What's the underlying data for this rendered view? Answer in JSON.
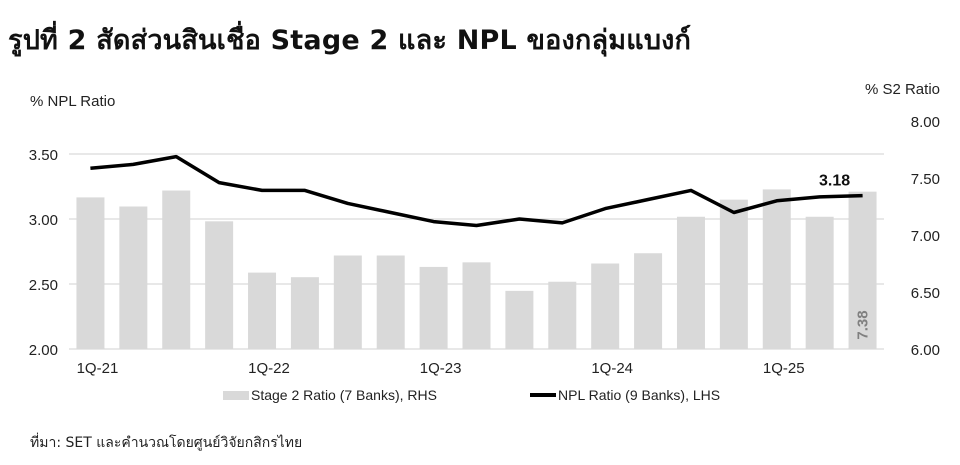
{
  "title": "รูปที่ 2 สัดส่วนสินเชื่อ Stage  2 และ NPL ของกลุ่มแบงก์",
  "axis_titles": {
    "left": "% NPL Ratio",
    "right": "% S2 Ratio"
  },
  "legend": {
    "bar": "Stage 2 Ratio (7 Banks), RHS",
    "line": "NPL Ratio (9 Banks), LHS"
  },
  "source": "ที่มา: SET และคำนวณโดยศูนย์วิจัยกสิกรไทย",
  "colors": {
    "bar": "#d9d9d9",
    "line": "#000000",
    "grid": "#d9d9d9",
    "bar_label": "#808080"
  },
  "annotations": {
    "last_npl_label": "3.18",
    "last_s2_label": "7.38"
  },
  "chart_data": {
    "type": "bar+line",
    "title": "รูปที่ 2 สัดส่วนสินเชื่อ Stage  2 และ NPL ของกลุ่มแบงก์",
    "categories": [
      "1Q-21",
      "2Q-21",
      "3Q-21",
      "4Q-21",
      "1Q-22",
      "2Q-22",
      "3Q-22",
      "4Q-22",
      "1Q-23",
      "2Q-23",
      "3Q-23",
      "4Q-23",
      "1Q-24",
      "2Q-24",
      "3Q-24",
      "4Q-24",
      "1Q-25",
      "2Q-25",
      "3Q-25"
    ],
    "x_tick_labels": [
      "1Q-21",
      "1Q-22",
      "1Q-23",
      "1Q-24",
      "1Q-25"
    ],
    "x_tick_indices": [
      0,
      4,
      8,
      12,
      16
    ],
    "series": [
      {
        "name": "Stage 2 Ratio (7 Banks), RHS",
        "type": "bar",
        "axis": "right",
        "values": [
          7.33,
          7.25,
          7.39,
          7.12,
          6.67,
          6.63,
          6.82,
          6.82,
          6.72,
          6.76,
          6.51,
          6.59,
          6.75,
          6.84,
          7.16,
          7.31,
          7.4,
          7.16,
          7.38
        ]
      },
      {
        "name": "NPL Ratio (9 Banks), LHS",
        "type": "line",
        "axis": "left",
        "values": [
          3.39,
          3.42,
          3.48,
          3.28,
          3.22,
          3.22,
          3.12,
          3.05,
          2.98,
          2.95,
          3.0,
          2.97,
          3.08,
          3.15,
          3.22,
          3.05,
          3.14,
          3.17,
          3.18
        ]
      }
    ],
    "ylabel_left": "% NPL Ratio",
    "ylabel_right": "% S2 Ratio",
    "ylim_left": [
      2.0,
      3.5
    ],
    "ylim_right": [
      6.0,
      8.0
    ],
    "yticks_left": [
      "2.00",
      "2.50",
      "3.00",
      "3.50"
    ],
    "yticks_right": [
      "6.00",
      "6.50",
      "7.00",
      "7.50",
      "8.00"
    ],
    "grid": true,
    "legend_position": "bottom",
    "data_labels": [
      {
        "series": "NPL Ratio (9 Banks), LHS",
        "index": 18,
        "text": "3.18"
      },
      {
        "series": "Stage 2 Ratio (7 Banks), RHS",
        "index": 18,
        "text": "7.38"
      }
    ]
  }
}
